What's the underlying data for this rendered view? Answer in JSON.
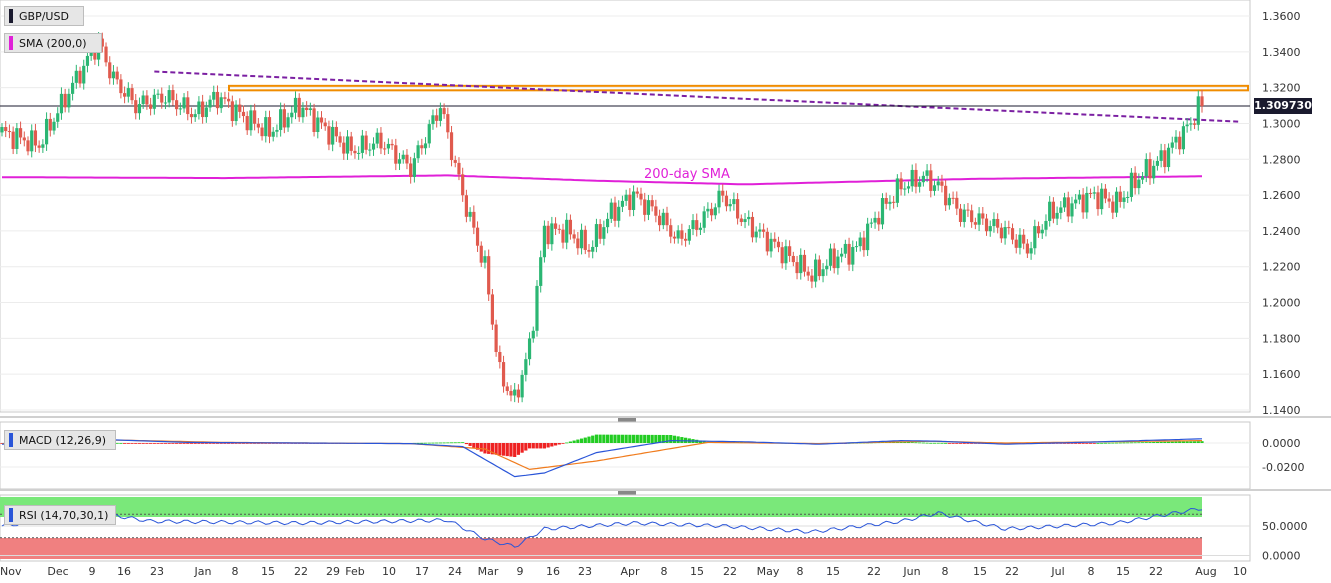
{
  "chart_data": {
    "type": "candlestick",
    "symbol": "GBP/USD",
    "current_price": "1.309730",
    "colors": {
      "up": "#2bb673",
      "down": "#e05a4e",
      "sma": "#e020d8",
      "trendline": "#7b1fa2",
      "zone": "#f08c00",
      "macd": "#2a55d8",
      "signal": "#f07c1e",
      "hist_up": "#22cc22",
      "hist_down": "#ee2222",
      "rsi": "#2a55d8"
    },
    "price_panel": {
      "yticks": [
        "1.3600",
        "1.3400",
        "1.3200",
        "1.3000",
        "1.2800",
        "1.2600",
        "1.2400",
        "1.2200",
        "1.2000",
        "1.1800",
        "1.1600",
        "1.1400"
      ],
      "ylim": [
        1.138,
        1.368
      ],
      "sma_legend": "SMA (200,0)",
      "sma_label": "200-day SMA",
      "resistance_zone": [
        1.3185,
        1.321
      ]
    },
    "x_axis": {
      "labels": [
        "Nov",
        "Dec",
        "9",
        "16",
        "23",
        "Jan",
        "8",
        "15",
        "22",
        "29",
        "Feb",
        "10",
        "17",
        "24",
        "Mar",
        "9",
        "16",
        "23",
        "Apr",
        "8",
        "15",
        "22",
        "May",
        "8",
        "15",
        "22",
        "Jun",
        "8",
        "15",
        "22",
        "Jul",
        "8",
        "15",
        "22",
        "Aug",
        "10"
      ]
    },
    "macd_panel": {
      "legend": "MACD (12,26,9)",
      "yticks": [
        "0.0000",
        "-0.0200"
      ]
    },
    "rsi_panel": {
      "legend": "RSI (14,70,30,1)",
      "yticks": [
        "50.0000",
        "0.0000"
      ],
      "overbought": 70,
      "oversold": 30
    },
    "close_anchors": [
      [
        0,
        1.295
      ],
      [
        10,
        1.288
      ],
      [
        20,
        1.325
      ],
      [
        26,
        1.345
      ],
      [
        30,
        1.325
      ],
      [
        36,
        1.31
      ],
      [
        44,
        1.315
      ],
      [
        52,
        1.305
      ],
      [
        58,
        1.315
      ],
      [
        64,
        1.305
      ],
      [
        72,
        1.295
      ],
      [
        80,
        1.31
      ],
      [
        88,
        1.295
      ],
      [
        94,
        1.285
      ],
      [
        102,
        1.29
      ],
      [
        110,
        1.275
      ],
      [
        118,
        1.31
      ],
      [
        124,
        1.26
      ],
      [
        130,
        1.22
      ],
      [
        134,
        1.16
      ],
      [
        138,
        1.145
      ],
      [
        142,
        1.175
      ],
      [
        146,
        1.24
      ],
      [
        152,
        1.24
      ],
      [
        158,
        1.23
      ],
      [
        164,
        1.25
      ],
      [
        170,
        1.26
      ],
      [
        176,
        1.25
      ],
      [
        182,
        1.235
      ],
      [
        188,
        1.245
      ],
      [
        194,
        1.26
      ],
      [
        200,
        1.245
      ],
      [
        206,
        1.235
      ],
      [
        212,
        1.225
      ],
      [
        218,
        1.215
      ],
      [
        224,
        1.225
      ],
      [
        230,
        1.23
      ],
      [
        236,
        1.25
      ],
      [
        242,
        1.265
      ],
      [
        248,
        1.27
      ],
      [
        252,
        1.265
      ],
      [
        258,
        1.25
      ],
      [
        264,
        1.245
      ],
      [
        270,
        1.24
      ],
      [
        276,
        1.23
      ],
      [
        282,
        1.25
      ],
      [
        288,
        1.255
      ],
      [
        294,
        1.26
      ],
      [
        300,
        1.255
      ],
      [
        306,
        1.27
      ],
      [
        312,
        1.28
      ],
      [
        318,
        1.295
      ],
      [
        320,
        1.3
      ],
      [
        322,
        1.31
      ],
      [
        323,
        1.3097
      ]
    ],
    "sma_anchors": [
      [
        0,
        1.27
      ],
      [
        60,
        1.2695
      ],
      [
        120,
        1.271
      ],
      [
        160,
        1.268
      ],
      [
        200,
        1.266
      ],
      [
        260,
        1.269
      ],
      [
        323,
        1.2705
      ]
    ],
    "rsi_anchors": [
      [
        0,
        50
      ],
      [
        26,
        72
      ],
      [
        40,
        58
      ],
      [
        80,
        55
      ],
      [
        120,
        60
      ],
      [
        130,
        28
      ],
      [
        138,
        15
      ],
      [
        146,
        45
      ],
      [
        170,
        55
      ],
      [
        194,
        50
      ],
      [
        218,
        40
      ],
      [
        242,
        58
      ],
      [
        252,
        72
      ],
      [
        270,
        45
      ],
      [
        300,
        55
      ],
      [
        323,
        80
      ]
    ],
    "macd_anchors": [
      [
        0,
        -0.001
      ],
      [
        26,
        0.003
      ],
      [
        50,
        0.0005
      ],
      [
        80,
        0.0
      ],
      [
        110,
        -0.0005
      ],
      [
        124,
        -0.003
      ],
      [
        138,
        -0.028
      ],
      [
        146,
        -0.025
      ],
      [
        160,
        -0.008
      ],
      [
        180,
        0.002
      ],
      [
        200,
        0.001
      ],
      [
        220,
        -0.001
      ],
      [
        242,
        0.002
      ],
      [
        252,
        0.0015
      ],
      [
        270,
        -0.001
      ],
      [
        290,
        0.0005
      ],
      [
        323,
        0.0035
      ]
    ],
    "signal_anchors": [
      [
        0,
        -0.0005
      ],
      [
        30,
        0.0025
      ],
      [
        60,
        0.0005
      ],
      [
        110,
        -0.0005
      ],
      [
        130,
        -0.005
      ],
      [
        142,
        -0.022
      ],
      [
        160,
        -0.015
      ],
      [
        190,
        0.0005
      ],
      [
        220,
        -0.0005
      ],
      [
        250,
        0.0015
      ],
      [
        270,
        0.0
      ],
      [
        323,
        0.002
      ]
    ]
  }
}
